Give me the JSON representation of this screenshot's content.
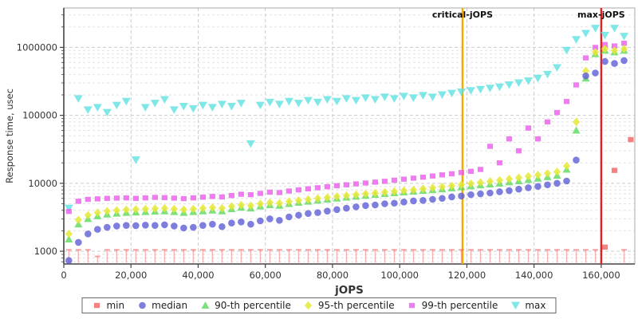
{
  "chart_data": {
    "type": "scatter",
    "title": "",
    "xlabel": "jOPS",
    "ylabel": "Response time, usec",
    "y_scale": "log",
    "xlim": [
      0,
      170000
    ],
    "ylim": [
      650,
      3800000
    ],
    "grid": true,
    "legend_position": "bottom-center",
    "x_ticks": [
      {
        "v": 0,
        "label": "0"
      },
      {
        "v": 20000,
        "label": "20,000"
      },
      {
        "v": 40000,
        "label": "40,000"
      },
      {
        "v": 60000,
        "label": "60,000"
      },
      {
        "v": 80000,
        "label": "80,000"
      },
      {
        "v": 100000,
        "label": "100,000"
      },
      {
        "v": 120000,
        "label": "120,000"
      },
      {
        "v": 140000,
        "label": "140,000"
      },
      {
        "v": 160000,
        "label": "160,000"
      }
    ],
    "y_ticks": [
      {
        "v": 1000,
        "label": "1000"
      },
      {
        "v": 10000,
        "label": "10000"
      },
      {
        "v": 100000,
        "label": "100000"
      },
      {
        "v": 1000000,
        "label": "1000000"
      }
    ],
    "annotations": [
      {
        "label": "critical-jOPS",
        "jops": 118700,
        "color": "#f5a800"
      },
      {
        "label": "max-jOPS",
        "jops": 160000,
        "color": "#e52020"
      }
    ],
    "x": [
      1500,
      4350,
      7200,
      10050,
      12900,
      15750,
      18600,
      21450,
      24300,
      27150,
      30000,
      32850,
      35700,
      38550,
      41400,
      44250,
      47100,
      49950,
      52800,
      55650,
      58500,
      61350,
      64200,
      67050,
      69900,
      72750,
      75600,
      78450,
      81300,
      84150,
      87000,
      89850,
      92700,
      95550,
      98400,
      101250,
      104100,
      106950,
      109800,
      112650,
      115500,
      118350,
      121200,
      124050,
      126900,
      129750,
      132600,
      135450,
      138300,
      141150,
      144000,
      146850,
      149700,
      152550,
      155400,
      158250,
      161100,
      163950,
      166800
    ],
    "series": [
      {
        "id": "min",
        "label": "min",
        "marker": "square-tee",
        "color": "#f25c5c",
        "values": [
          1050,
          1050,
          1050,
          840,
          1050,
          1050,
          1050,
          1050,
          1050,
          1050,
          1050,
          1050,
          1050,
          1050,
          1050,
          1050,
          1050,
          1050,
          1050,
          1050,
          1050,
          1050,
          1050,
          1050,
          1050,
          1050,
          1050,
          1050,
          1050,
          1050,
          1050,
          1050,
          1050,
          1050,
          1050,
          1050,
          1050,
          1050,
          1050,
          1050,
          1050,
          1050,
          1050,
          1050,
          1050,
          1050,
          1050,
          1050,
          1050,
          1050,
          1050,
          1050,
          1050,
          1050,
          1050,
          1050,
          1150,
          15500,
          1050
        ],
        "extra_points": [
          {
            "jops": 168800,
            "value": 44000
          }
        ]
      },
      {
        "id": "median",
        "label": "median",
        "marker": "circle",
        "color": "#5a5ad6",
        "values": [
          730,
          1350,
          1800,
          2100,
          2250,
          2350,
          2400,
          2380,
          2420,
          2400,
          2450,
          2350,
          2200,
          2250,
          2400,
          2500,
          2300,
          2600,
          2700,
          2500,
          2800,
          3000,
          2850,
          3200,
          3400,
          3600,
          3700,
          3900,
          4100,
          4300,
          4500,
          4700,
          4800,
          5000,
          5100,
          5300,
          5500,
          5600,
          5800,
          6000,
          6300,
          6500,
          6800,
          7000,
          7200,
          7500,
          7800,
          8200,
          8600,
          9000,
          9500,
          10000,
          10800,
          22000,
          380000,
          420000,
          620000,
          580000,
          640000
        ]
      },
      {
        "id": "p90",
        "label": "90-th percentile",
        "marker": "triangle-up",
        "color": "#57d957",
        "values": [
          1500,
          2500,
          3000,
          3300,
          3500,
          3600,
          3700,
          3750,
          3800,
          3850,
          3900,
          3800,
          3700,
          3800,
          3900,
          4000,
          3900,
          4200,
          4400,
          4300,
          4600,
          4800,
          4700,
          5000,
          5200,
          5400,
          5600,
          5800,
          6000,
          6200,
          6400,
          6600,
          6800,
          7000,
          7200,
          7400,
          7600,
          7800,
          8000,
          8200,
          8500,
          8800,
          9100,
          9400,
          9700,
          10000,
          10400,
          10800,
          11300,
          11800,
          12400,
          13000,
          16000,
          60000,
          350000,
          800000,
          900000,
          850000,
          900000
        ]
      },
      {
        "id": "p95",
        "label": "95-th percentile",
        "marker": "diamond",
        "color": "#e8e838",
        "values": [
          1800,
          2900,
          3400,
          3700,
          3900,
          4000,
          4100,
          4150,
          4200,
          4250,
          4300,
          4200,
          4100,
          4200,
          4300,
          4400,
          4300,
          4600,
          4800,
          4700,
          5000,
          5200,
          5100,
          5400,
          5600,
          5800,
          6000,
          6200,
          6400,
          6600,
          6800,
          7000,
          7200,
          7400,
          7600,
          7800,
          8000,
          8300,
          8600,
          8900,
          9200,
          9500,
          9900,
          10300,
          10700,
          11100,
          11600,
          12100,
          12700,
          13300,
          14000,
          14800,
          18000,
          80000,
          450000,
          850000,
          950000,
          900000,
          950000
        ]
      },
      {
        "id": "p99",
        "label": "99-th percentile",
        "marker": "square",
        "color": "#ee55ee",
        "values": [
          3850,
          5450,
          5800,
          5900,
          6000,
          6050,
          6100,
          6000,
          6100,
          6200,
          6150,
          6050,
          5950,
          6100,
          6250,
          6400,
          6300,
          6600,
          6900,
          6800,
          7100,
          7400,
          7300,
          7700,
          8000,
          8300,
          8600,
          8900,
          9200,
          9500,
          9800,
          10100,
          10400,
          10700,
          11100,
          11500,
          11900,
          12300,
          12800,
          13300,
          13800,
          14400,
          15000,
          16000,
          35000,
          20000,
          45000,
          30000,
          65000,
          45000,
          80000,
          110000,
          160000,
          280000,
          700000,
          1000000,
          1100000,
          1050000,
          1150000
        ]
      },
      {
        "id": "max",
        "label": "max",
        "marker": "triangle-down",
        "color": "#5ce0e0",
        "values": [
          4300,
          175000,
          120000,
          130000,
          110000,
          140000,
          160000,
          22000,
          130000,
          150000,
          170000,
          120000,
          135000,
          125000,
          140000,
          130000,
          145000,
          135000,
          150000,
          38000,
          140000,
          155000,
          145000,
          160000,
          150000,
          165000,
          155000,
          170000,
          160000,
          175000,
          165000,
          180000,
          170000,
          185000,
          175000,
          190000,
          180000,
          195000,
          185000,
          200000,
          210000,
          220000,
          230000,
          240000,
          250000,
          260000,
          280000,
          300000,
          320000,
          350000,
          400000,
          500000,
          900000,
          1300000,
          1600000,
          1900000,
          1500000,
          1900000,
          1450000
        ]
      }
    ],
    "legend_order": [
      "min",
      "median",
      "p90",
      "p95",
      "p99",
      "max"
    ]
  },
  "colors": {
    "grid_major": "#cccccc",
    "grid_minor": "#e2e2e2",
    "axis": "#444444",
    "frame": "#aaaaaa",
    "tick_text": "#333333"
  }
}
